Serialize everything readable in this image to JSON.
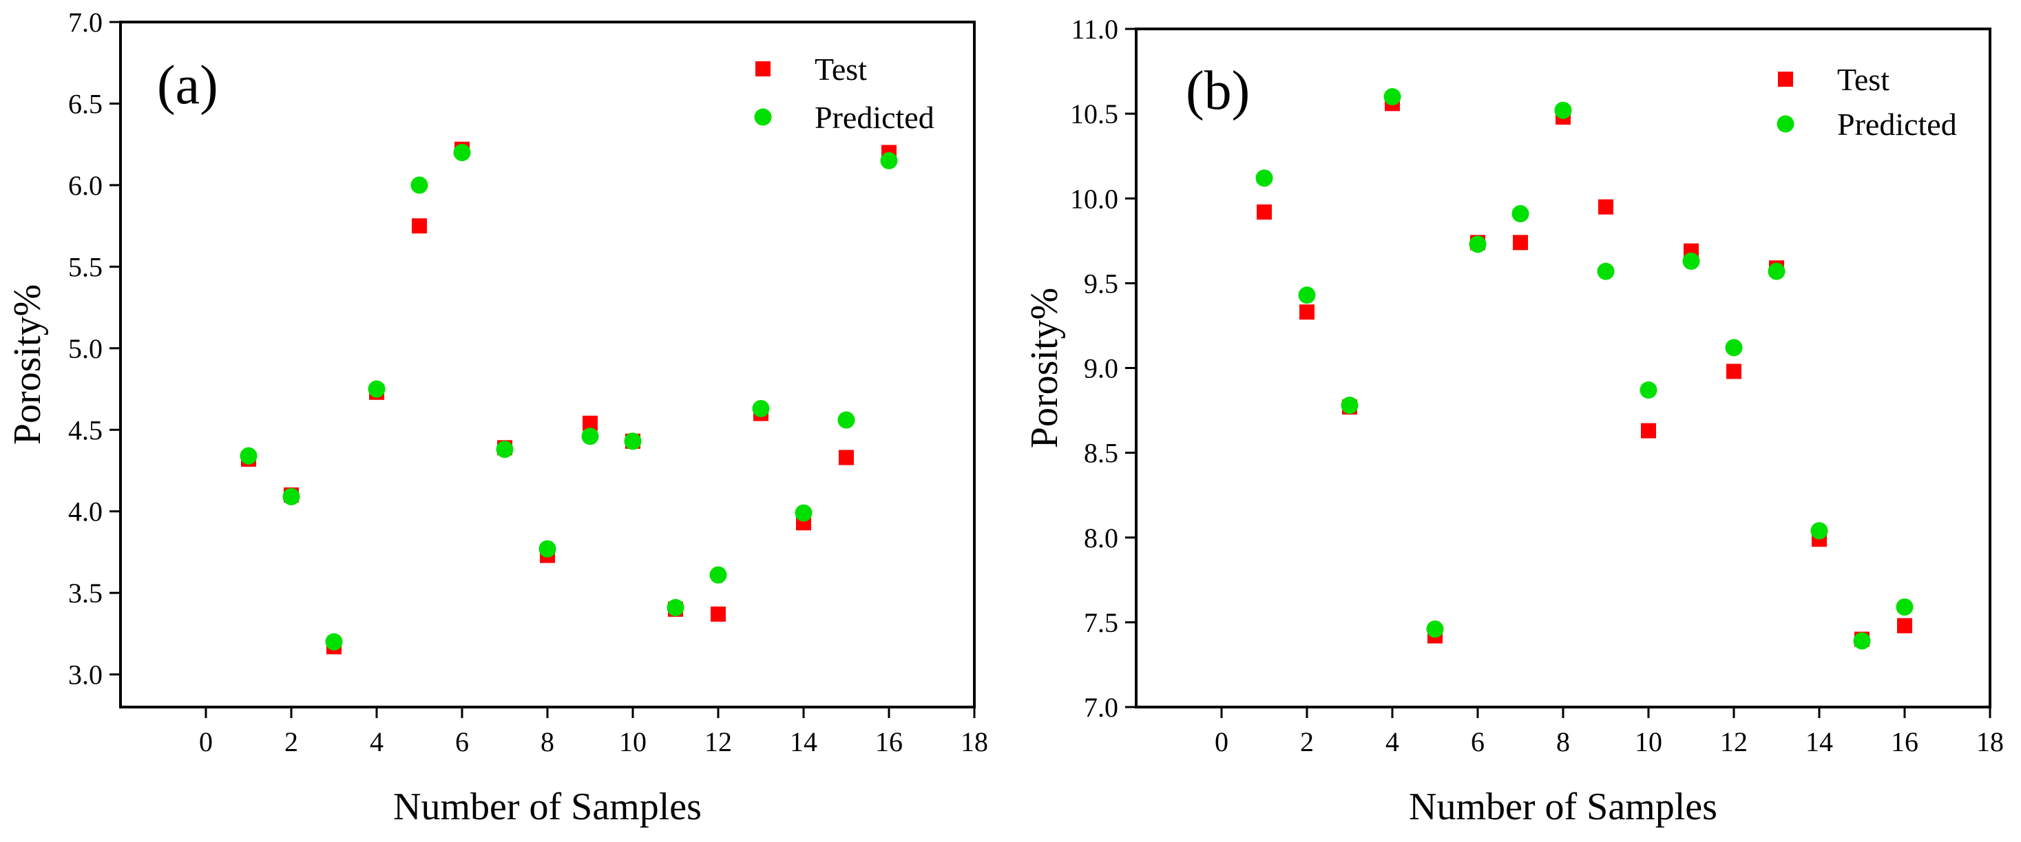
{
  "colors": {
    "test": "#ff0000",
    "predicted": "#00e000"
  },
  "chart_data": [
    {
      "type": "scatter",
      "panel_label": "(a)",
      "xlabel": "Number of Samples",
      "ylabel": "Porosity%",
      "xlim": [
        -2,
        18
      ],
      "ylim": [
        2.8,
        7.0
      ],
      "xticks": [
        0,
        2,
        4,
        6,
        8,
        10,
        12,
        14,
        16,
        18
      ],
      "yticks": [
        3.0,
        3.5,
        4.0,
        4.5,
        5.0,
        5.5,
        6.0,
        6.5,
        7.0
      ],
      "ytick_decimals": 1,
      "legend_position": "top-right",
      "series": [
        {
          "name": "Test",
          "marker": "square",
          "x": [
            1,
            2,
            3,
            4,
            5,
            6,
            7,
            8,
            9,
            10,
            11,
            12,
            13,
            14,
            15,
            16
          ],
          "y": [
            4.32,
            4.1,
            3.17,
            4.73,
            5.75,
            6.22,
            4.39,
            3.73,
            4.54,
            4.43,
            3.4,
            3.37,
            4.6,
            3.93,
            4.33,
            6.2
          ]
        },
        {
          "name": "Predicted",
          "marker": "circle",
          "x": [
            1,
            2,
            3,
            4,
            5,
            6,
            7,
            8,
            9,
            10,
            11,
            12,
            13,
            14,
            15,
            16
          ],
          "y": [
            4.34,
            4.09,
            3.2,
            4.75,
            6.0,
            6.2,
            4.38,
            3.77,
            4.46,
            4.43,
            3.41,
            3.61,
            4.63,
            3.99,
            4.56,
            6.15
          ]
        }
      ]
    },
    {
      "type": "scatter",
      "panel_label": "(b)",
      "xlabel": "Number of Samples",
      "ylabel": "Porosity%",
      "xlim": [
        -2,
        18
      ],
      "ylim": [
        7.0,
        11.0
      ],
      "xticks": [
        0,
        2,
        4,
        6,
        8,
        10,
        12,
        14,
        16,
        18
      ],
      "yticks": [
        7.0,
        7.5,
        8.0,
        8.5,
        9.0,
        9.5,
        10.0,
        10.5,
        11.0
      ],
      "ytick_decimals": 1,
      "legend_position": "top-right",
      "series": [
        {
          "name": "Test",
          "marker": "square",
          "x": [
            1,
            2,
            3,
            4,
            5,
            6,
            7,
            8,
            9,
            10,
            11,
            12,
            13,
            14,
            15,
            16
          ],
          "y": [
            9.92,
            9.33,
            8.77,
            10.56,
            7.42,
            9.74,
            9.74,
            10.48,
            9.95,
            8.63,
            9.69,
            8.98,
            9.59,
            7.99,
            7.4,
            7.48
          ]
        },
        {
          "name": "Predicted",
          "marker": "circle",
          "x": [
            1,
            2,
            3,
            4,
            5,
            6,
            7,
            8,
            9,
            10,
            11,
            12,
            13,
            14,
            15,
            16
          ],
          "y": [
            10.12,
            9.43,
            8.78,
            10.6,
            7.46,
            9.73,
            9.91,
            10.52,
            9.57,
            8.87,
            9.63,
            9.12,
            9.57,
            8.04,
            7.39,
            7.59
          ]
        }
      ]
    }
  ]
}
